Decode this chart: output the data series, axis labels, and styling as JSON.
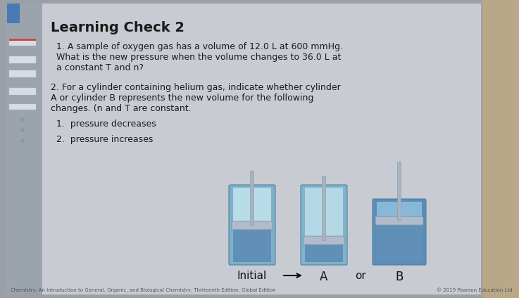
{
  "title": "Learning Check 2",
  "q1_line1": "1. A sample of oxygen gas has a volume of 12.0 L at 600 mmHg.",
  "q1_line2": "What is the new pressure when the volume changes to 36.0 L at",
  "q1_line3": "a constant T and n?",
  "q2_line1": "2. For a cylinder containing helium gas, indicate whether cylinder",
  "q2_line2": "A or cylinder B represents the new volume for the following",
  "q2_line3": "changes. (n and T are constant.",
  "sub1": "1.  pressure decreases",
  "sub2": "2.  pressure increases",
  "label_initial": "Initial",
  "label_a": "A",
  "label_or": "or",
  "label_b": "B",
  "footer_left": "Chemistry: An Introduction to General, Organic, and Biological Chemistry, Thirteenth Edition, Global Edition",
  "footer_right": "© 2019 Pearson Education Ltd.",
  "bg_outer": "#9aa0a8",
  "bg_main": "#c8ccd2",
  "left_strip": "#9ba3ad",
  "bookmark_blue": "#4a7ab5",
  "text_color": "#1a1a1a",
  "footer_color": "#555555",
  "cyl_init_body": "#7fb0c8",
  "cyl_init_gas": "#b8dce8",
  "cyl_a_body": "#80b4ca",
  "cyl_a_gas": "#b5d8e6",
  "cyl_b_body": "#5a8db8",
  "cyl_b_gas": "#88b8d8",
  "piston_color": "#b0bccc",
  "rod_color": "#a8b4c0",
  "blue_liquid": "#6090b8"
}
